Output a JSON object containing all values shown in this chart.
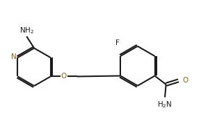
{
  "background_color": "#ffffff",
  "line_color": "#1a1a1a",
  "n_color": "#8B6508",
  "o_color": "#8B6508",
  "bond_lw": 1.5,
  "figsize": [
    3.12,
    1.92
  ],
  "dpi": 100,
  "xlim": [
    0,
    10
  ],
  "ylim": [
    0,
    6.15
  ]
}
